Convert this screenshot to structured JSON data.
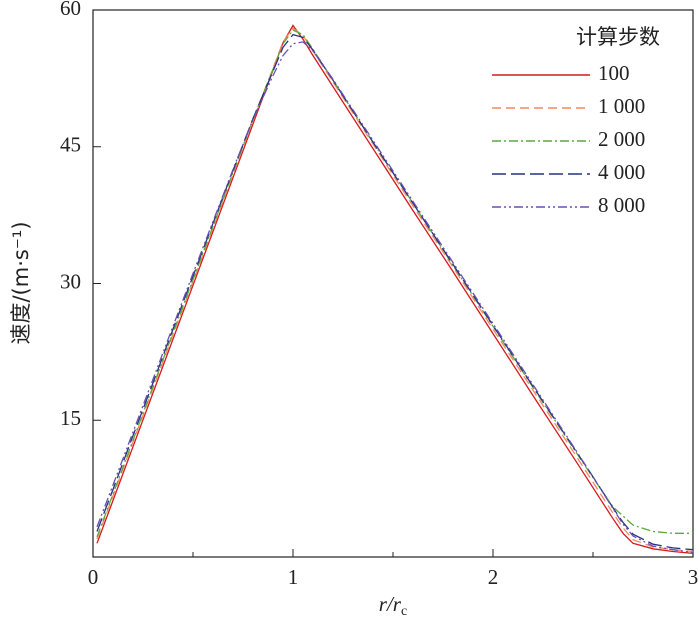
{
  "chart_data": {
    "type": "line",
    "xlabel": {
      "main": "r/r",
      "sub": "c"
    },
    "ylabel": "速度/(m·s⁻¹)",
    "legend_title": "计算步数",
    "legend": "upper right",
    "xlim": [
      0,
      3
    ],
    "xticks": [
      0,
      1,
      2,
      3
    ],
    "xminorticks": [
      0.5,
      1.5,
      2.5
    ],
    "ylim": [
      0,
      60
    ],
    "yticks": [
      15,
      30,
      45,
      60
    ],
    "x": [
      0.02,
      0.1,
      0.2,
      0.3,
      0.4,
      0.5,
      0.6,
      0.7,
      0.8,
      0.9,
      0.95,
      1.0,
      1.05,
      1.1,
      1.2,
      1.4,
      1.6,
      1.8,
      2.0,
      2.2,
      2.4,
      2.5,
      2.6,
      2.65,
      2.7,
      2.8,
      2.9,
      3.0
    ],
    "series": [
      {
        "name": "100",
        "color": "#d7191c",
        "style": "solid",
        "values": [
          1.5,
          6.2,
          12.1,
          18.0,
          23.9,
          29.8,
          35.7,
          41.6,
          47.5,
          53.4,
          56.4,
          58.3,
          56.8,
          55.0,
          51.6,
          44.8,
          38.0,
          31.3,
          24.5,
          17.7,
          11.0,
          7.6,
          4.2,
          2.6,
          1.5,
          0.9,
          0.6,
          0.4
        ]
      },
      {
        "name": "1 000",
        "color": "#f4895f",
        "style": "dashed",
        "values": [
          2.0,
          6.7,
          12.6,
          18.5,
          24.4,
          30.2,
          36.1,
          42.0,
          47.9,
          53.6,
          56.5,
          58.0,
          57.2,
          55.5,
          52.1,
          45.3,
          38.5,
          31.8,
          25.0,
          18.3,
          11.6,
          8.2,
          4.8,
          3.2,
          1.9,
          1.1,
          0.8,
          0.6
        ]
      },
      {
        "name": "2 000",
        "color": "#5aab3c",
        "style": "dashdot",
        "values": [
          2.2,
          6.9,
          12.8,
          18.7,
          24.6,
          30.4,
          36.3,
          42.2,
          48.0,
          53.5,
          56.3,
          57.8,
          57.3,
          55.7,
          52.3,
          45.5,
          38.8,
          32.0,
          25.3,
          18.6,
          12.0,
          8.7,
          5.5,
          4.5,
          3.5,
          2.8,
          2.6,
          2.6
        ]
      },
      {
        "name": "4 000",
        "color": "#26337f",
        "style": "longdash",
        "values": [
          2.8,
          7.4,
          13.3,
          19.1,
          25.0,
          30.8,
          36.6,
          42.4,
          48.1,
          53.3,
          55.9,
          57.3,
          57.0,
          55.6,
          52.3,
          45.5,
          38.8,
          32.1,
          25.4,
          18.7,
          12.1,
          8.8,
          5.4,
          3.8,
          2.5,
          1.4,
          1.0,
          0.8
        ]
      },
      {
        "name": "8 000",
        "color": "#6a4fb5",
        "style": "dashdotdot",
        "values": [
          3.3,
          7.9,
          13.7,
          19.5,
          25.3,
          31.1,
          36.8,
          42.5,
          48.0,
          52.8,
          55.0,
          56.3,
          56.5,
          55.5,
          52.4,
          45.7,
          39.0,
          32.3,
          25.6,
          18.9,
          12.2,
          8.8,
          5.3,
          3.6,
          2.3,
          1.2,
          0.8,
          0.5
        ]
      }
    ]
  }
}
